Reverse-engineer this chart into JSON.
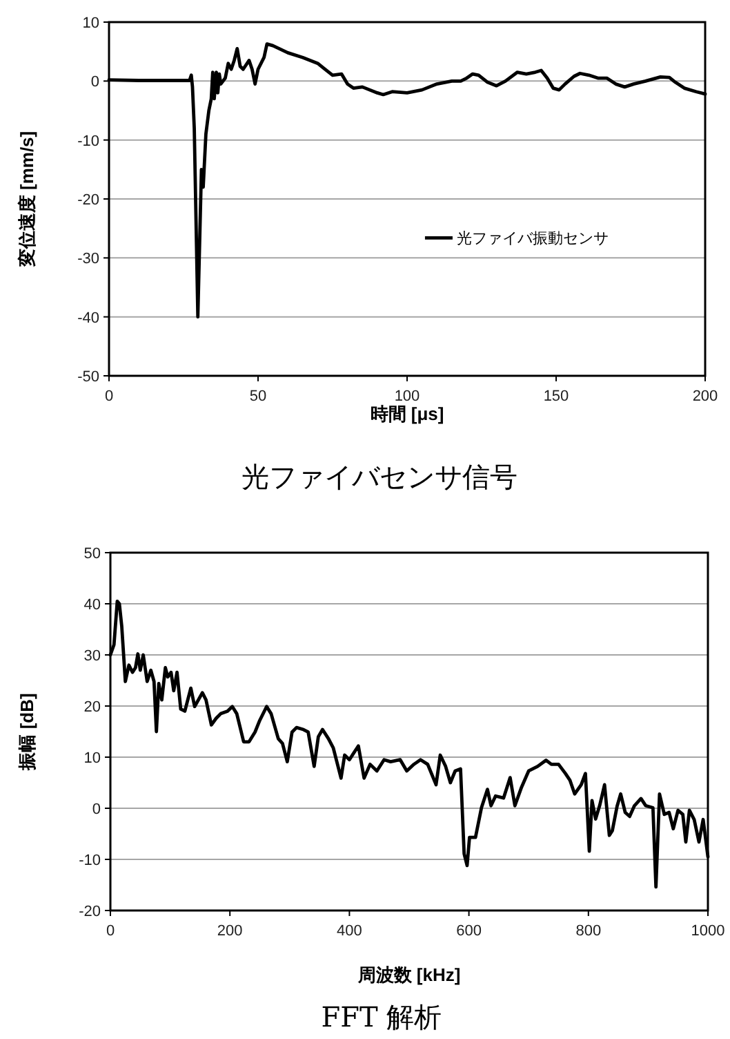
{
  "chart_data": [
    {
      "type": "line",
      "title": "光ファイバセンサ信号",
      "xlabel": "時間 [μs]",
      "ylabel": "変位速度 [mm/s]",
      "xlim": [
        0,
        200
      ],
      "xticks": [
        0,
        50,
        100,
        150,
        200
      ],
      "ylim": [
        -50,
        10
      ],
      "yticks": [
        -50,
        -40,
        -30,
        -20,
        -10,
        0,
        10
      ],
      "grid": "y",
      "legend": "right",
      "series": [
        {
          "name": "光ファイバ振動センサ",
          "color": "#000000",
          "x": [
            0,
            10,
            20,
            27,
            27.6,
            28,
            28.6,
            29.8,
            31,
            31.6,
            32.5,
            33.5,
            34.3,
            34.8,
            35.3,
            36,
            36.5,
            37,
            37.5,
            39,
            40,
            41,
            42,
            43,
            44,
            45,
            47,
            48,
            49,
            50,
            52,
            53,
            55,
            60,
            65,
            70,
            72,
            75,
            78,
            80,
            82,
            85,
            90,
            92,
            95,
            100,
            105,
            110,
            115,
            118,
            120,
            122,
            124,
            127,
            130,
            133,
            137,
            140,
            143,
            145,
            147,
            149,
            151,
            153,
            156,
            158,
            161,
            164,
            167,
            170,
            173,
            176,
            180,
            185,
            188,
            190,
            193,
            197,
            200
          ],
          "values": [
            0.2,
            0.1,
            0.1,
            0.1,
            1,
            -1,
            -8,
            -40,
            -15,
            -18,
            -9,
            -5,
            -3,
            1.5,
            -3,
            1.5,
            -2,
            1.2,
            -0.5,
            0.5,
            3,
            2,
            3.5,
            5.5,
            2.5,
            2,
            3.5,
            2,
            -0.5,
            2,
            4,
            6.3,
            6,
            4.8,
            4,
            3,
            2.2,
            1,
            1.2,
            -0.5,
            -1.2,
            -1,
            -2,
            -2.3,
            -1.8,
            -2,
            -1.5,
            -0.5,
            0,
            0,
            0.5,
            1.2,
            1,
            -0.2,
            -0.8,
            0,
            1.5,
            1.2,
            1.5,
            1.8,
            0.5,
            -1.2,
            -1.5,
            -0.5,
            0.8,
            1.3,
            1,
            0.5,
            0.5,
            -0.5,
            -1,
            -0.5,
            0,
            0.7,
            0.6,
            -0.2,
            -1.2,
            -1.8,
            -2.2
          ]
        }
      ]
    },
    {
      "type": "line",
      "title": "FFT 解析",
      "xlabel": "周波数 [kHz]",
      "ylabel": "振幅 [dB]",
      "xlim": [
        0,
        1000
      ],
      "xticks": [
        0,
        200,
        400,
        600,
        800,
        1000
      ],
      "ylim": [
        -20,
        50
      ],
      "yticks": [
        -20,
        -10,
        0,
        10,
        20,
        30,
        40,
        50
      ],
      "grid": "y",
      "series": [
        {
          "color": "#000000",
          "x": [
            0,
            6,
            11.5,
            15,
            19,
            25,
            31,
            37,
            42,
            46,
            50,
            55,
            61.5,
            67.7,
            73,
            77,
            81,
            86,
            92,
            96,
            101.5,
            106,
            111.5,
            117.7,
            124.6,
            134.6,
            141,
            154,
            160,
            169,
            177,
            184.6,
            196,
            204,
            211.5,
            223,
            232,
            242,
            250,
            261.5,
            269,
            281,
            288,
            296,
            304,
            311.5,
            323,
            331,
            341,
            348,
            355,
            365,
            373,
            386,
            392,
            400,
            415,
            424.6,
            434.6,
            446,
            458,
            469,
            485,
            496,
            508,
            519,
            531,
            545,
            552,
            561,
            569,
            577,
            586,
            592,
            597,
            601,
            611,
            621,
            631,
            637,
            644.6,
            658,
            669,
            677,
            688,
            700,
            715,
            729,
            738,
            750,
            761.5,
            769,
            777,
            788,
            795,
            801.5,
            806,
            812,
            819,
            827,
            835,
            840,
            848,
            854,
            861.5,
            869,
            877,
            888,
            896,
            908,
            913,
            919,
            927,
            935,
            942,
            950,
            958,
            963,
            969,
            977,
            985,
            992,
            1000
          ],
          "values": [
            30,
            32,
            40.5,
            40,
            35.6,
            24.8,
            28,
            26.6,
            27.5,
            30.2,
            27,
            30,
            24.8,
            27,
            24.8,
            15,
            24.4,
            21.2,
            27.5,
            25.7,
            26.6,
            23,
            26.6,
            19.4,
            19,
            23.5,
            19.9,
            22.6,
            21.2,
            16.3,
            17.6,
            18.5,
            19,
            19.9,
            18.5,
            13,
            13,
            14.9,
            17.2,
            19.9,
            18.5,
            13.6,
            12.7,
            9.1,
            14.9,
            15.8,
            15.4,
            14.9,
            8.2,
            14,
            15.4,
            13.6,
            11.8,
            5.9,
            10.4,
            9.5,
            12.2,
            5.9,
            8.6,
            7.3,
            9.5,
            9.1,
            9.5,
            7.3,
            8.6,
            9.5,
            8.6,
            4.6,
            10.4,
            8.2,
            5,
            7.3,
            7.7,
            -8.9,
            -11.2,
            -5.7,
            -5.7,
            0.1,
            3.7,
            0.5,
            2.4,
            2,
            6,
            0.5,
            4.1,
            7.3,
            8.2,
            9.4,
            8.6,
            8.6,
            6.8,
            5.5,
            2.8,
            4.6,
            6.8,
            -8.4,
            1.5,
            -2.1,
            0.6,
            4.6,
            -5.3,
            -4.4,
            0.4,
            2.8,
            -0.8,
            -1.6,
            0.5,
            1.9,
            0.5,
            0.1,
            -15.4,
            2.8,
            -1.2,
            -0.8,
            -4,
            -0.4,
            -1.2,
            -6.6,
            -0.4,
            -2.2,
            -6.6,
            -2.2,
            -9.5
          ]
        }
      ]
    }
  ]
}
